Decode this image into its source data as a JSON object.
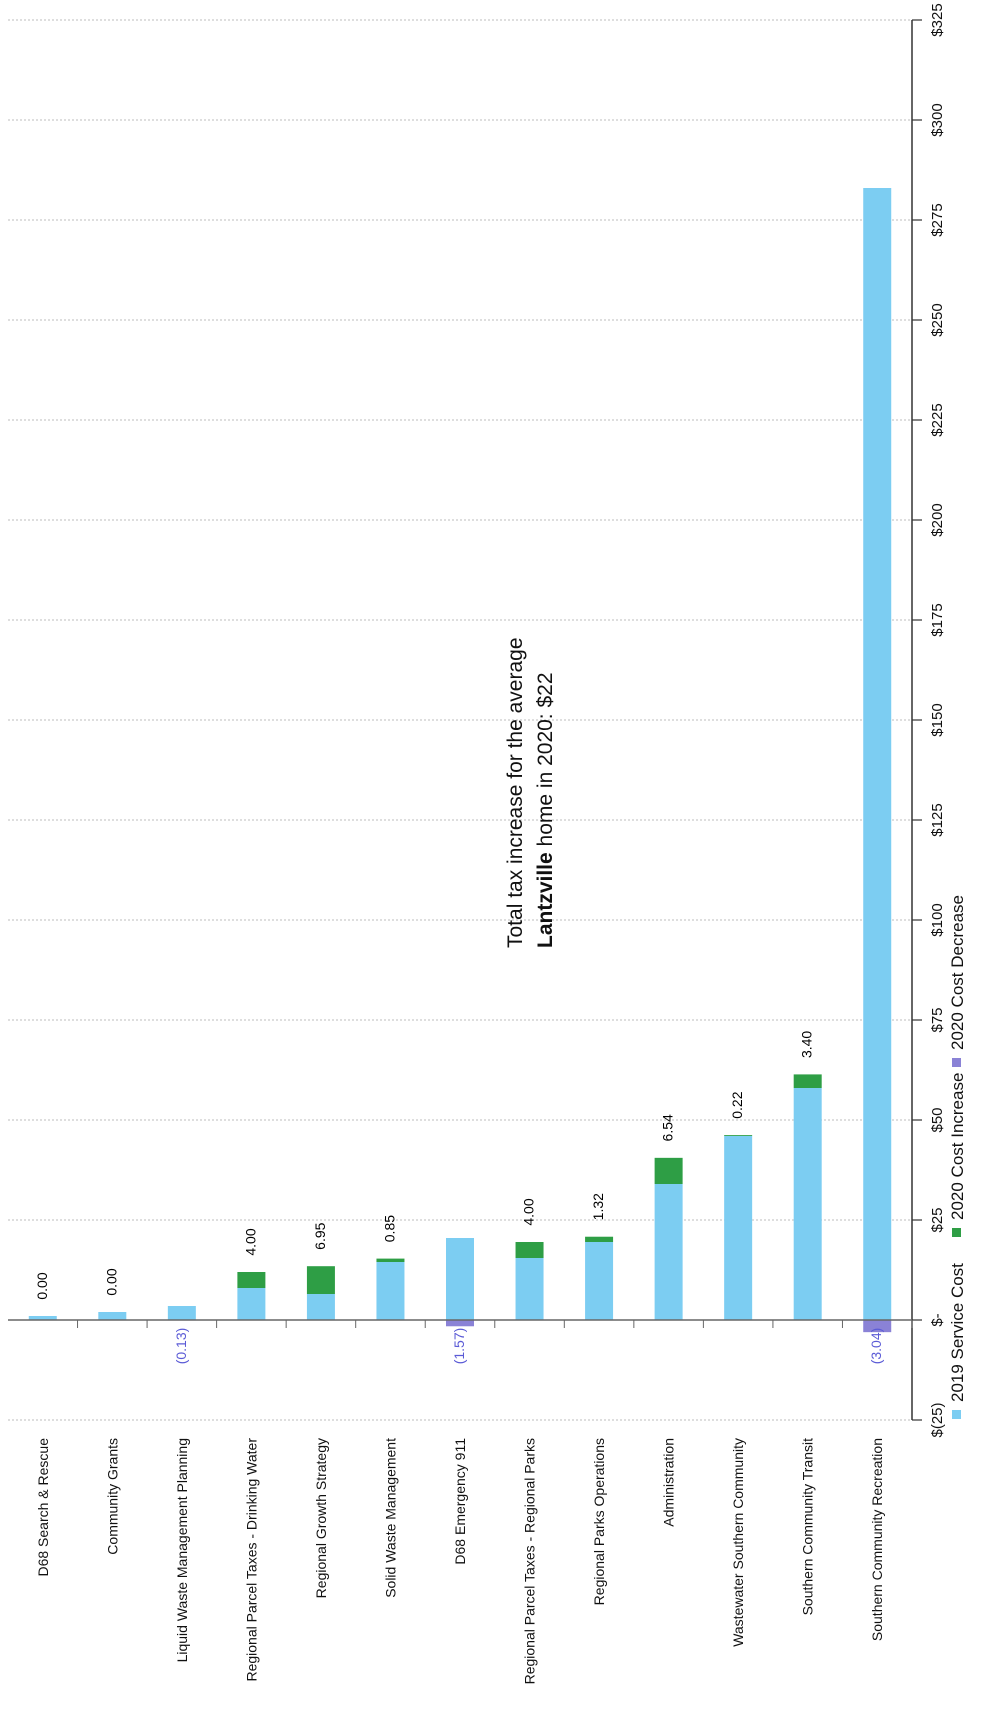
{
  "chart_data": {
    "type": "bar",
    "stacked": true,
    "orientation": "rotated-90",
    "title": "",
    "annotation": {
      "line1": "Total tax increase for the average",
      "line2_bold": "Lantzville",
      "line2_rest": " home in 2020: $22"
    },
    "categories": [
      "D68 Search & Rescue",
      "Community Grants",
      "Liquid Waste Management Planning",
      "Regional Parcel Taxes - Drinking Water",
      "Regional Growth Strategy",
      "Solid Waste  Management",
      "D68 Emergency 911",
      "Regional Parcel Taxes - Regional Parks",
      "Regional Parks Operations",
      "Administration",
      "Wastewater Southern Community",
      "Southern Community Transit",
      "Southern Community Recreation"
    ],
    "series": [
      {
        "name": "2019 Service Cost",
        "color": "#7ccdf2",
        "values": [
          1.0,
          2.0,
          3.5,
          8.0,
          6.5,
          14.5,
          20.5,
          15.5,
          19.5,
          34.0,
          46.0,
          58.0,
          283.0
        ]
      },
      {
        "name": "2020 Cost Increase",
        "color": "#2e9e45",
        "values": [
          0.0,
          0.0,
          0,
          4.0,
          6.95,
          0.85,
          0,
          4.0,
          1.32,
          6.54,
          0.22,
          3.4,
          0
        ]
      },
      {
        "name": "2020 Cost Decrease",
        "color": "#8a82d6",
        "values": [
          0,
          0,
          -0.13,
          0,
          0,
          0,
          -1.57,
          0,
          0,
          0,
          0,
          0,
          -3.04
        ]
      }
    ],
    "data_labels": [
      "0.00",
      "0.00",
      "(0.13)",
      "4.00",
      "6.95",
      "0.85",
      "(1.57)",
      "4.00",
      "1.32",
      "6.54",
      "0.22",
      "3.40",
      "(3.04)"
    ],
    "ylim": [
      -25,
      325
    ],
    "yticks": [
      -25,
      0,
      25,
      50,
      75,
      100,
      125,
      150,
      175,
      200,
      225,
      250,
      275,
      300,
      325
    ],
    "ytick_labels": [
      "$(25)",
      "$-",
      "$25",
      "$50",
      "$75",
      "$100",
      "$125",
      "$150",
      "$175",
      "$200",
      "$225",
      "$250",
      "$275",
      "$300",
      "$325"
    ],
    "grid": true,
    "legend_position": "bottom",
    "colors": {
      "increase_label": "#000000",
      "decrease_label": "#5b5bd6"
    }
  }
}
